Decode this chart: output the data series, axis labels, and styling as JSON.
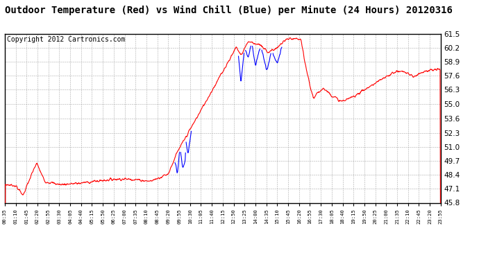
{
  "title": "Outdoor Temperature (Red) vs Wind Chill (Blue) per Minute (24 Hours) 20120316",
  "copyright": "Copyright 2012 Cartronics.com",
  "ylabel_right_ticks": [
    45.8,
    47.1,
    48.4,
    49.7,
    51.0,
    52.3,
    53.6,
    55.0,
    56.3,
    57.6,
    58.9,
    60.2,
    61.5
  ],
  "ylim": [
    45.8,
    61.5
  ],
  "temp_color": "#ff0000",
  "wind_color": "#0000ff",
  "bg_color": "#ffffff",
  "grid_color": "#aaaaaa",
  "title_fontsize": 10,
  "copyright_fontsize": 7,
  "xtick_labels": [
    "00:35",
    "01:10",
    "01:45",
    "02:20",
    "02:55",
    "03:30",
    "04:05",
    "04:40",
    "05:15",
    "05:50",
    "06:25",
    "07:00",
    "07:35",
    "08:10",
    "08:45",
    "09:20",
    "09:55",
    "10:30",
    "11:05",
    "11:40",
    "12:15",
    "12:50",
    "13:25",
    "14:00",
    "14:35",
    "15:10",
    "15:45",
    "16:20",
    "16:55",
    "17:30",
    "18:05",
    "18:40",
    "19:15",
    "19:50",
    "20:25",
    "21:00",
    "21:35",
    "22:10",
    "22:45",
    "23:20",
    "23:55"
  ],
  "n_minutes": 1441
}
